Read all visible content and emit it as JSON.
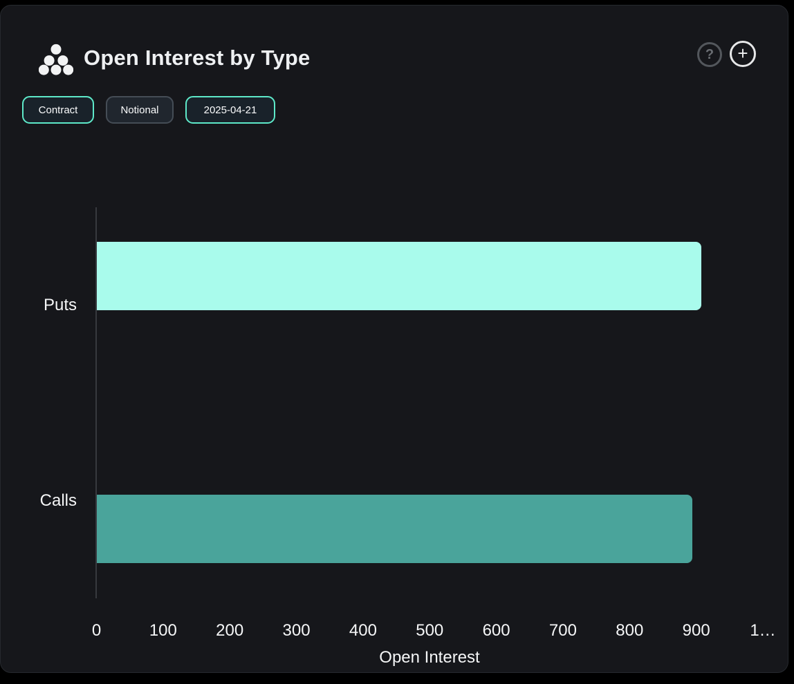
{
  "header": {
    "title": "Open Interest by Type",
    "help_label": "?",
    "add_label": "+"
  },
  "toolbar": {
    "buttons": [
      {
        "label": "Contract",
        "active": true
      },
      {
        "label": "Notional",
        "active": false
      },
      {
        "label": "2025-04-21",
        "active": true
      }
    ]
  },
  "colors": {
    "panel_background": "#16171b",
    "accent_teal_border": "#5ee9c9",
    "puts_bar": "#a9fbec",
    "calls_bar": "#4aa49b",
    "axis_line": "#37393e",
    "text": "#f5f6f7"
  },
  "chart_data": {
    "type": "bar",
    "orientation": "horizontal",
    "categories": [
      "Puts",
      "Calls"
    ],
    "values": [
      907,
      894
    ],
    "bar_colors": [
      "#a9fbec",
      "#4aa49b"
    ],
    "title": "Open Interest by Type",
    "xlabel": "Open Interest",
    "ylabel": "",
    "xlim": [
      0,
      1000
    ],
    "x_tick_values": [
      0,
      100,
      200,
      300,
      400,
      500,
      600,
      700,
      800,
      900,
      1000
    ],
    "x_tick_labels": [
      "0",
      "100",
      "200",
      "300",
      "400",
      "500",
      "600",
      "700",
      "800",
      "900",
      "1…"
    ],
    "grid": false,
    "legend": false
  }
}
